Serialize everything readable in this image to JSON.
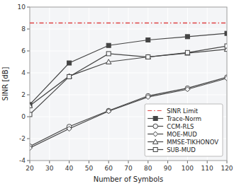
{
  "chart_data": {
    "type": "line",
    "xlabel": "Number of Symbols",
    "ylabel": "SINR [dB]",
    "x": [
      20,
      40,
      60,
      80,
      100,
      120
    ],
    "series": [
      {
        "name": "SINR Limit",
        "color": "#dd4444",
        "line_style": "dashdot",
        "values": [
          8.55,
          8.55,
          8.55,
          8.55,
          8.55,
          8.55
        ]
      },
      {
        "name": "Trace-Norm",
        "color": "#444444",
        "line_style": "solid",
        "marker": "square-filled",
        "values": [
          1.1,
          4.9,
          6.5,
          7.0,
          7.3,
          7.6
        ]
      },
      {
        "name": "CCM-RLS",
        "color": "#444444",
        "line_style": "solid",
        "marker": "circle",
        "values": [
          -2.7,
          -0.9,
          0.55,
          1.9,
          2.6,
          3.6
        ]
      },
      {
        "name": "MOE-MUD",
        "color": "#444444",
        "line_style": "solid",
        "marker": "diamond",
        "values": [
          -2.85,
          -1.1,
          0.5,
          1.8,
          2.5,
          3.5
        ]
      },
      {
        "name": "MMSE-TIKHONOV",
        "color": "#444444",
        "line_style": "solid",
        "marker": "triangle",
        "values": [
          1.0,
          3.7,
          5.0,
          5.45,
          5.8,
          6.15
        ]
      },
      {
        "name": "SUB-MUD",
        "color": "#444444",
        "line_style": "solid",
        "marker": "square",
        "values": [
          0.2,
          3.65,
          5.75,
          5.45,
          5.85,
          6.45
        ]
      }
    ],
    "xlim": [
      20,
      120
    ],
    "ylim": [
      -4,
      10
    ],
    "xticks": [
      20,
      30,
      40,
      50,
      60,
      70,
      80,
      90,
      100,
      110,
      120
    ],
    "yticks": [
      -4,
      -2,
      0,
      2,
      4,
      6,
      8,
      10
    ],
    "grid": true,
    "legend": "lower right"
  }
}
